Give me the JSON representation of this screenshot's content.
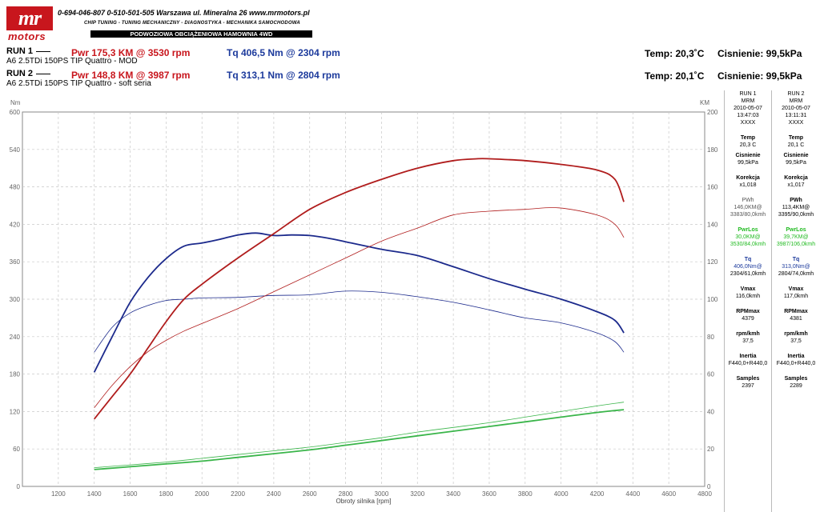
{
  "header": {
    "logo_mr": "mr",
    "logo_motors": "motors",
    "contact": "0-694-046-807   0-510-501-505   Warszawa ul. Mineralna 26   www.mrmotors.pl",
    "services": "CHIP TUNING - TUNING MECHANICZNY - DIAGNOSTYKA - MECHANIKA SAMOCHODOWA",
    "banner": "PODWOZIOWA OBCIĄŻENIOWA HAMOWNIA 4WD"
  },
  "runs": [
    {
      "label": "RUN 1",
      "pwr": "Pwr 175,3 KM @ 3530 rpm",
      "tq": "Tq 406,5 Nm @ 2304 rpm",
      "desc": "A6 2.5TDi 150PS TIP Quattro - MOD",
      "temp": "Temp: 20,3˚C",
      "pressure": "Cisnienie: 99,5kPa"
    },
    {
      "label": "RUN 2",
      "pwr": "Pwr 148,8 KM @ 3987 rpm",
      "tq": "Tq 313,1 Nm @ 2804 rpm",
      "desc": "A6 2.5TDi 150PS TIP Quattro - soft seria",
      "temp": "Temp: 20,1˚C",
      "pressure": "Cisnienie: 99,5kPa"
    }
  ],
  "panel": {
    "col1": {
      "head": [
        "RUN 1",
        "MRM",
        "2010-05-07",
        "13:47:03",
        "XXXX"
      ],
      "temp_l": "Temp",
      "temp": "20,3 C",
      "cis_l": "Cisnienie",
      "cis": "99,5kPa",
      "kor_l": "Korekcja",
      "kor": "x1,018",
      "pwh_l": "PWh",
      "pwh": "146,0KM@",
      "pwh2": "3383/80,0kmh",
      "pwl_l": "PwrLos",
      "pwl": "30,0KM@",
      "pwl2": "3530/84,0kmh",
      "tq_l": "Tq",
      "tq": "406,0Nm@",
      "tq2": "2304/61,0kmh",
      "vmax_l": "Vmax",
      "vmax": "116,0kmh",
      "rpm_l": "RPMmax",
      "rpm": "4379",
      "rk_l": "rpm/kmh",
      "rk": "37,5",
      "in_l": "Inertia",
      "in": "F440,0+R440,0",
      "sm_l": "Samples",
      "sm": "2397"
    },
    "col2": {
      "head": [
        "RUN 2",
        "MRM",
        "2010-05-07",
        "13:11:31",
        "XXXX"
      ],
      "temp_l": "Temp",
      "temp": "20,1 C",
      "cis_l": "Cisnienie",
      "cis": "99,5kPa",
      "kor_l": "Korekcja",
      "kor": "x1,017",
      "pwh_l": "PWh",
      "pwh": "113,4KM@",
      "pwh2": "3395/90,0kmh",
      "pwl_l": "PwrLos",
      "pwl": "39,7KM@",
      "pwl2": "3987/106,0kmh",
      "tq_l": "Tq",
      "tq": "313,0Nm@",
      "tq2": "2804/74,0kmh",
      "vmax_l": "Vmax",
      "vmax": "117,0kmh",
      "rpm_l": "RPMmax",
      "rpm": "4381",
      "rk_l": "rpm/kmh",
      "rk": "37,5",
      "in_l": "Inertia",
      "in": "F440,0+R440,0",
      "sm_l": "Samples",
      "sm": "2289"
    }
  },
  "chart_data": {
    "type": "line",
    "xlabel": "Obroty silnika [rpm]",
    "ylabel_left": "Nm",
    "ylabel_right": "KM",
    "xlim": [
      1000,
      4800
    ],
    "ylim_left": [
      0,
      600
    ],
    "ylim_right": [
      0,
      200
    ],
    "xticks": [
      1200,
      1400,
      1600,
      1800,
      2000,
      2200,
      2400,
      2600,
      2800,
      3000,
      3200,
      3400,
      3600,
      3800,
      4000,
      4200,
      4400,
      4600,
      4800
    ],
    "yticks_left": [
      0,
      60,
      120,
      180,
      240,
      300,
      360,
      420,
      480,
      540,
      600
    ],
    "yticks_right": [
      0,
      20,
      40,
      60,
      80,
      100,
      120,
      140,
      160,
      180,
      200
    ],
    "grid": true,
    "colors": {
      "power": "#b01c1c",
      "torque": "#1c2a8c",
      "loss": "#3ab54a"
    },
    "series": [
      {
        "axis": "left",
        "kind": "torque",
        "weight": "bold",
        "x": [
          1400,
          1500,
          1600,
          1700,
          1800,
          1900,
          2000,
          2100,
          2200,
          2300,
          2400,
          2500,
          2600,
          2700,
          2800,
          3000,
          3200,
          3400,
          3600,
          3800,
          4000,
          4200,
          4300,
          4350
        ],
        "y": [
          183,
          240,
          295,
          335,
          365,
          385,
          390,
          396,
          403,
          406,
          402,
          403,
          402,
          398,
          392,
          380,
          370,
          352,
          333,
          316,
          300,
          280,
          266,
          246
        ]
      },
      {
        "axis": "left",
        "kind": "torque",
        "weight": "thin",
        "x": [
          1400,
          1500,
          1600,
          1700,
          1800,
          1900,
          2000,
          2200,
          2400,
          2600,
          2800,
          3000,
          3200,
          3400,
          3600,
          3800,
          4000,
          4200,
          4300,
          4350
        ],
        "y": [
          215,
          255,
          278,
          290,
          298,
          300,
          302,
          303,
          306,
          307,
          313,
          311,
          304,
          295,
          283,
          270,
          262,
          246,
          232,
          215
        ]
      },
      {
        "axis": "right",
        "kind": "power",
        "weight": "bold",
        "x": [
          1400,
          1500,
          1600,
          1700,
          1800,
          1900,
          2000,
          2200,
          2400,
          2600,
          2800,
          3000,
          3200,
          3400,
          3530,
          3600,
          3800,
          4000,
          4200,
          4300,
          4350
        ],
        "y": [
          36,
          48,
          60,
          74,
          88,
          100,
          108,
          122,
          135,
          148,
          157,
          164,
          170,
          174,
          175,
          175,
          174,
          172,
          169,
          164,
          152
        ]
      },
      {
        "axis": "right",
        "kind": "power",
        "weight": "thin",
        "x": [
          1400,
          1500,
          1600,
          1700,
          1800,
          1900,
          2000,
          2200,
          2400,
          2600,
          2800,
          3000,
          3200,
          3400,
          3600,
          3800,
          3987,
          4200,
          4300,
          4350
        ],
        "y": [
          42,
          54,
          64,
          72,
          78,
          83,
          87,
          95,
          104,
          113,
          122,
          131,
          138,
          145,
          147,
          148,
          148.8,
          145,
          140,
          133
        ]
      },
      {
        "axis": "right",
        "kind": "loss",
        "weight": "bold",
        "x": [
          1400,
          1600,
          1800,
          2000,
          2200,
          2400,
          2600,
          2800,
          3000,
          3200,
          3400,
          3600,
          3800,
          4000,
          4200,
          4350
        ],
        "y": [
          9,
          10.5,
          12,
          13.5,
          15.5,
          17.5,
          19.5,
          22,
          24.5,
          27,
          29.5,
          32,
          34.5,
          37,
          39.5,
          41
        ]
      },
      {
        "axis": "right",
        "kind": "loss",
        "weight": "thin",
        "x": [
          1400,
          1600,
          1800,
          2000,
          2200,
          2400,
          2600,
          2800,
          3000,
          3200,
          3400,
          3600,
          3800,
          4000,
          4200,
          4350
        ],
        "y": [
          10,
          11.5,
          13,
          15,
          17,
          19,
          21,
          23.5,
          26,
          29,
          31.5,
          34,
          37,
          40,
          43,
          45
        ]
      }
    ]
  }
}
